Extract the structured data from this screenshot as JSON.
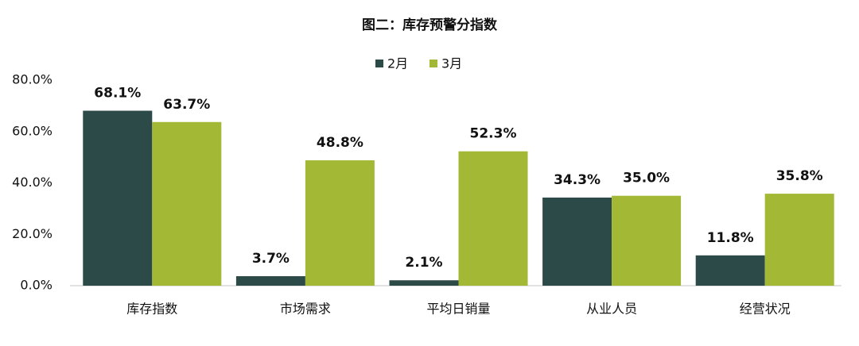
{
  "chart_data": {
    "type": "bar",
    "title": "图二：库存预警分指数",
    "categories": [
      "库存指数",
      "市场需求",
      "平均日销量",
      "从业人员",
      "经营状况"
    ],
    "series": [
      {
        "name": "2月",
        "color": "#2c4a48",
        "values": [
          68.1,
          3.7,
          2.1,
          34.3,
          11.8
        ],
        "value_labels": [
          "68.1%",
          "3.7%",
          "2.1%",
          "34.3%",
          "11.8%"
        ]
      },
      {
        "name": "3月",
        "color": "#a3b935",
        "values": [
          63.7,
          48.8,
          52.3,
          35.0,
          35.8
        ],
        "value_labels": [
          "63.7%",
          "48.8%",
          "52.3%",
          "35.0%",
          "35.8%"
        ]
      }
    ],
    "ylim": [
      0,
      80
    ],
    "yticks": [
      {
        "value": 0,
        "label": "0.0%"
      },
      {
        "value": 20,
        "label": "20.0%"
      },
      {
        "value": 40,
        "label": "40.0%"
      },
      {
        "value": 60,
        "label": "60.0%"
      },
      {
        "value": 80,
        "label": "80.0%"
      }
    ],
    "legend": "top"
  }
}
